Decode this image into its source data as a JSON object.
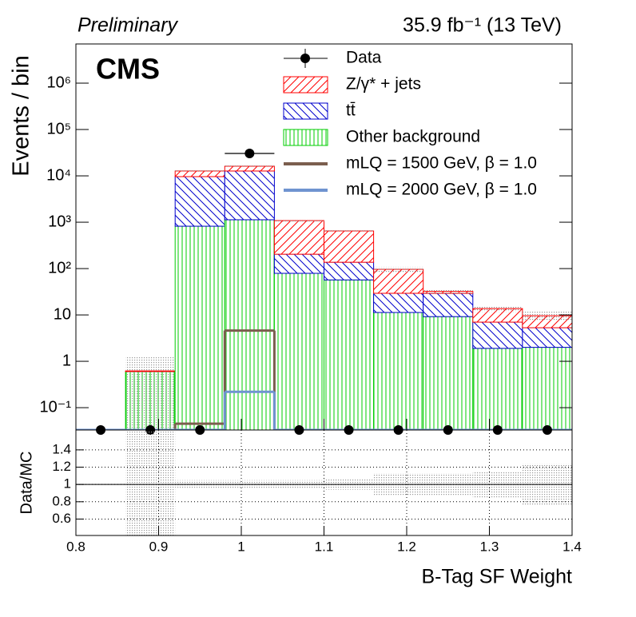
{
  "chart_data": [
    {
      "type": "histogram",
      "header_left": "Preliminary",
      "header_right": "35.9 fb⁻¹ (13 TeV)",
      "label": "CMS",
      "ylabel": "Events / bin",
      "log_y": true,
      "bins": [
        0.8,
        0.86,
        0.92,
        0.98,
        1.04,
        1.1,
        1.16,
        1.22,
        1.28,
        1.34,
        1.4
      ],
      "xlim": [
        0.8,
        1.4
      ],
      "ylim": [
        0.033,
        7000000
      ],
      "yticks": [
        {
          "value": 0.1,
          "label": "10⁻¹"
        },
        1,
        10,
        {
          "value": 100,
          "label": "10²"
        },
        {
          "value": 1000,
          "label": "10³"
        },
        {
          "value": 10000,
          "label": "10⁴"
        },
        {
          "value": 100000,
          "label": "10⁵"
        },
        {
          "value": 1000000,
          "label": "10⁶"
        }
      ],
      "series": [
        {
          "name": "Data",
          "style": "points",
          "color": "#000000",
          "values": [
            0,
            0,
            0,
            30400,
            0,
            0,
            0,
            0,
            0,
            0
          ]
        },
        {
          "name": "Z/γ* + jets",
          "style": "stack",
          "hatch": "rising",
          "color": "#ff0000",
          "values": [
            0,
            0.02,
            3100,
            3400,
            880,
            510,
            67,
            3,
            6.7,
            4.3
          ]
        },
        {
          "name": "tt̄",
          "style": "stack",
          "hatch": "falling",
          "color": "#0000cc",
          "values": [
            0,
            0,
            8800,
            11600,
            125,
            80,
            18,
            20,
            5.1,
            3.3
          ]
        },
        {
          "name": "Other background",
          "style": "stack",
          "hatch": "vertical",
          "color": "#00cc00",
          "values": [
            0,
            0.6,
            820,
            1130,
            79,
            57,
            11.3,
            9.2,
            1.9,
            2.0
          ]
        },
        {
          "name": "mLQ = 1500 GeV, β = 1.0",
          "style": "step",
          "color": "#7b5e4e",
          "values": [
            0,
            0,
            0.045,
            4.6,
            0,
            0,
            0,
            0,
            0,
            0
          ]
        },
        {
          "name": "mLQ = 2000 GeV, β = 1.0",
          "style": "step",
          "color": "#6f94d0",
          "values": [
            0,
            0,
            0,
            0.22,
            0,
            0,
            0,
            0,
            0,
            0
          ]
        }
      ],
      "uncertainty": [
        0,
        1,
        0.05,
        0.05,
        0.05,
        0.06,
        0.13,
        0.13,
        0.15,
        0.24
      ],
      "uncertainty_color": "#999999"
    },
    {
      "type": "ratio",
      "ylabel": "Data/MC",
      "xlabel": "B-Tag SF Weight",
      "xlim": [
        0.8,
        1.4
      ],
      "xticks": [
        0.8,
        0.9,
        1,
        1.1,
        1.2,
        1.3,
        1.4
      ],
      "ylim": [
        0.41,
        1.63
      ],
      "yticks": [
        0.6,
        0.8,
        1,
        1.2,
        1.4
      ],
      "reference": 1,
      "grid": true,
      "uncertainty": [
        0,
        1,
        0.05,
        0.05,
        0.05,
        0.06,
        0.13,
        0.13,
        0.15,
        0.24
      ],
      "uncertainty_color": "#999999"
    }
  ]
}
